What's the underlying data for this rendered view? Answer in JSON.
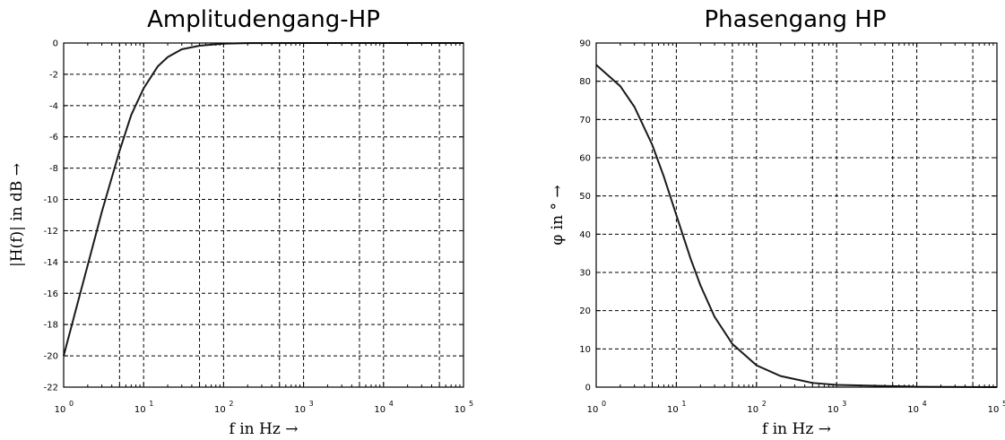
{
  "chart_data": [
    {
      "type": "line",
      "title": "Amplitudengang-HP",
      "xlabel": "f in Hz →",
      "ylabel": "|H(f)| in dB →",
      "xscale": "log",
      "xlim": [
        1,
        100000
      ],
      "ylim": [
        -22,
        0
      ],
      "x_ticks": [
        "10^0",
        "10^1",
        "10^2",
        "10^3",
        "10^4",
        "10^5"
      ],
      "y_ticks": [
        "0",
        "-2",
        "-4",
        "-6",
        "-8",
        "-10",
        "-12",
        "-14",
        "-16",
        "-18",
        "-20",
        "-22"
      ],
      "grid": true,
      "series": [
        {
          "x": [
            1,
            1.5,
            2,
            3,
            5,
            7,
            10,
            15,
            20,
            30,
            50,
            100,
            200,
            1000,
            10000,
            100000
          ],
          "values": [
            -20,
            -16.6,
            -14.2,
            -10.8,
            -6.9,
            -4.6,
            -2.9,
            -1.5,
            -0.9,
            -0.4,
            -0.17,
            -0.04,
            -0.01,
            0,
            0,
            0
          ]
        }
      ]
    },
    {
      "type": "line",
      "title": "Phasengang HP",
      "xlabel": "f in Hz →",
      "ylabel": "φ in ° →",
      "xscale": "log",
      "xlim": [
        1,
        100000
      ],
      "ylim": [
        0,
        90
      ],
      "x_ticks": [
        "10^0",
        "10^1",
        "10^2",
        "10^3",
        "10^4",
        "10^5"
      ],
      "y_ticks": [
        "0",
        "10",
        "20",
        "30",
        "40",
        "50",
        "60",
        "70",
        "80",
        "90"
      ],
      "grid": true,
      "series": [
        {
          "x": [
            1,
            2,
            3,
            5,
            7,
            10,
            15,
            20,
            30,
            50,
            100,
            200,
            500,
            1000,
            10000,
            100000
          ],
          "values": [
            84.3,
            78.7,
            73.3,
            63.4,
            55.0,
            45.0,
            33.7,
            26.6,
            18.4,
            11.3,
            5.7,
            2.9,
            1.1,
            0.6,
            0.1,
            0
          ]
        }
      ]
    }
  ]
}
